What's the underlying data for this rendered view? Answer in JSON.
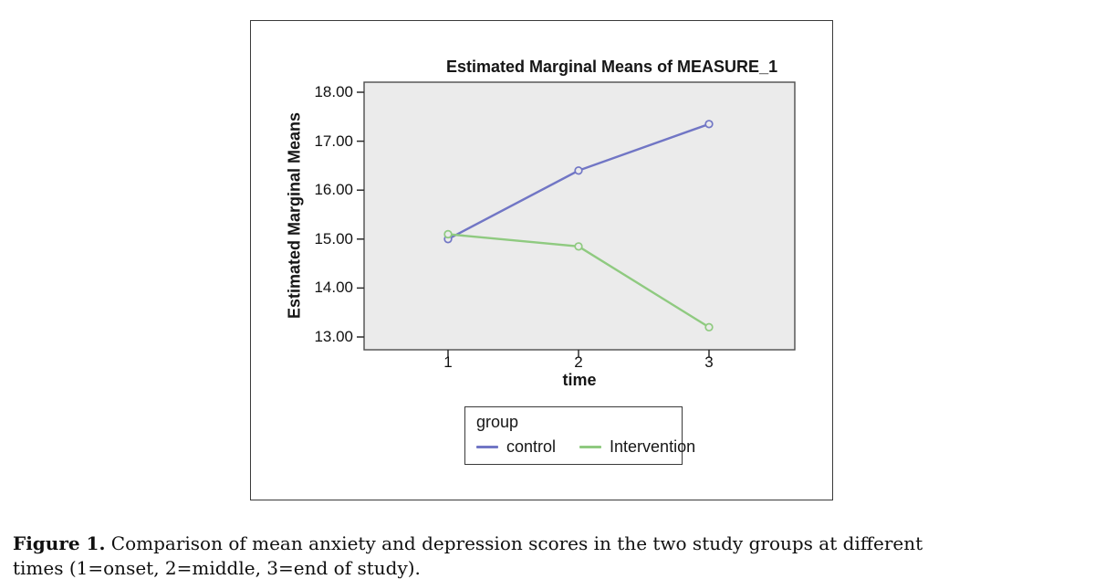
{
  "chart_data": {
    "type": "line",
    "title": "Estimated Marginal Means of MEASURE_1",
    "xlabel": "time",
    "ylabel": "Estimated Marginal Means",
    "x": [
      1,
      2,
      3
    ],
    "x_tick_labels": [
      "1",
      "2",
      "3"
    ],
    "y_tick_labels": [
      "18.00",
      "17.00",
      "16.00",
      "15.00",
      "14.00",
      "13.00"
    ],
    "ylim": [
      13.0,
      18.0
    ],
    "grid": false,
    "marker": "open-circle",
    "plot_background": "#ebebeb",
    "plot_border_color": "#4d4d4d",
    "tick_color": "#2a2a2a",
    "legend": {
      "title": "group",
      "position": "bottom-center"
    },
    "series": [
      {
        "name": "control",
        "color": "#7176c5",
        "values": [
          15.0,
          16.4,
          17.35
        ]
      },
      {
        "name": "Intervention",
        "color": "#8fca80",
        "values": [
          15.1,
          14.85,
          13.2
        ]
      }
    ]
  },
  "figure": {
    "caption_label": "Figure 1.",
    "caption_line1": "Comparison of mean anxiety and depression scores in the two study groups at different",
    "caption_line2": "times (1=onset, 2=middle, 3=end of study)."
  }
}
